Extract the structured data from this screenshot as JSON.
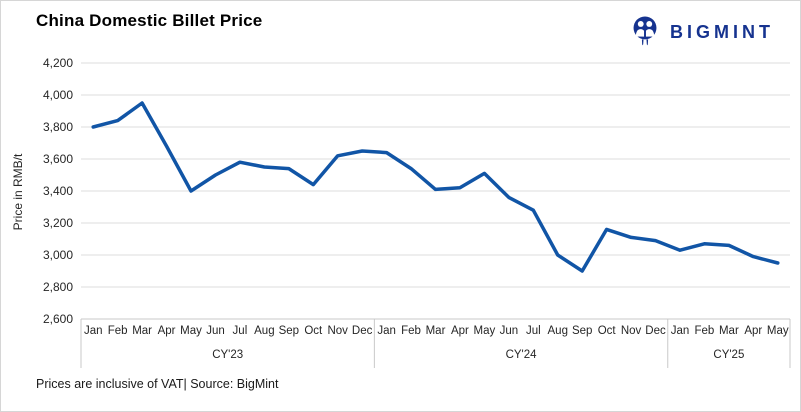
{
  "header": {
    "title": "China Domestic Billet Price",
    "logo": {
      "text": "BIGMINT",
      "color": "#16338F",
      "icon": "bigmint-people-icon"
    }
  },
  "chart_data": {
    "type": "line",
    "title": "China Domestic Billet Price",
    "ylabel": "Price in RMB/t",
    "ylim": [
      2600,
      4200
    ],
    "ytick_step": 200,
    "ytick_labels": [
      "4,200",
      "4,000",
      "3,800",
      "3,600",
      "3,400",
      "3,200",
      "3,000",
      "2,800",
      "2,600"
    ],
    "ytick_values": [
      4200,
      4000,
      3800,
      3600,
      3400,
      3200,
      3000,
      2800,
      2600
    ],
    "grid": true,
    "legend": "none",
    "line_color": "#1155A6",
    "x_groups": [
      {
        "year": "CY'23",
        "months": [
          "Jan",
          "Feb",
          "Mar",
          "Apr",
          "May",
          "Jun",
          "Jul",
          "Aug",
          "Sep",
          "Oct",
          "Nov",
          "Dec"
        ]
      },
      {
        "year": "CY'24",
        "months": [
          "Jan",
          "Feb",
          "Mar",
          "Apr",
          "May",
          "Jun",
          "Jul",
          "Aug",
          "Sep",
          "Oct",
          "Nov",
          "Dec"
        ]
      },
      {
        "year": "CY'25",
        "months": [
          "Jan",
          "Feb",
          "Mar",
          "Apr",
          "May"
        ]
      }
    ],
    "series": [
      {
        "name": "China Domestic Billet Price",
        "values": [
          3800,
          3840,
          3950,
          3680,
          3400,
          3500,
          3580,
          3550,
          3540,
          3440,
          3620,
          3650,
          3640,
          3540,
          3410,
          3420,
          3510,
          3360,
          3280,
          3000,
          2900,
          3160,
          3110,
          3090,
          3030,
          3070,
          3060,
          2990,
          2950
        ]
      }
    ]
  },
  "footer": {
    "note": "Prices are inclusive of VAT| Source: BigMint"
  }
}
